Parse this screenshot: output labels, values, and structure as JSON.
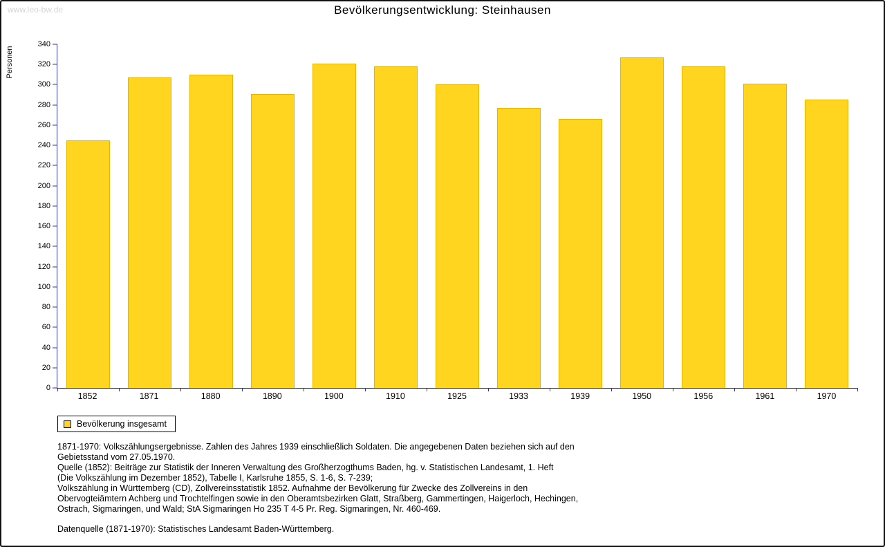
{
  "watermark": "www.leo-bw.de",
  "header": {
    "title": "Bevölkerungsentwicklung: Steinhausen"
  },
  "chart_data": {
    "type": "bar",
    "title": "Bevölkerungsentwicklung: Steinhausen",
    "categories": [
      "1852",
      "1871",
      "1880",
      "1890",
      "1900",
      "1910",
      "1925",
      "1933",
      "1939",
      "1950",
      "1956",
      "1961",
      "1970"
    ],
    "values": [
      245,
      307,
      310,
      291,
      321,
      318,
      300,
      277,
      266,
      327,
      318,
      301,
      285
    ],
    "xlabel": "",
    "ylabel": "Personen",
    "ylim": [
      0,
      340
    ],
    "ytick_step": 20,
    "grid": false,
    "legend_position": "bottom-left",
    "bar_color": "#FFD520",
    "axis_color": "#3333A0",
    "legend": [
      {
        "label": "Bevölkerung insgesamt",
        "color": "#FFD520"
      }
    ]
  },
  "legend": {
    "label": "Bevölkerung insgesamt"
  },
  "notes": {
    "lines": [
      "1871-1970: Volkszählungsergebnisse. Zahlen des Jahres 1939 einschließlich Soldaten. Die angegebenen Daten beziehen sich auf den",
      "Gebietsstand vom 27.05.1970.",
      "Quelle (1852): Beiträge zur Statistik der Inneren Verwaltung des Großherzogthums Baden, hg. v. Statistischen Landesamt, 1. Heft",
      "(Die Volkszählung im Dezember 1852), Tabelle I, Karlsruhe 1855, S. 1-6, S. 7-239;",
      "Volkszählung in Württemberg (CD), Zollvereinsstatistik 1852. Aufnahme der Bevölkerung für Zwecke des Zollvereins in den",
      "Obervogteiämtern Achberg und Trochtelfingen sowie in den Oberamtsbezirken Glatt, Straßberg, Gammertingen, Haigerloch, Hechingen,",
      "Ostrach, Sigmaringen, und Wald; StA Sigmaringen Ho 235 T 4-5 Pr. Reg. Sigmaringen, Nr. 460-469.",
      "",
      "Datenquelle (1871-1970): Statistisches Landesamt Baden-Württemberg."
    ]
  }
}
